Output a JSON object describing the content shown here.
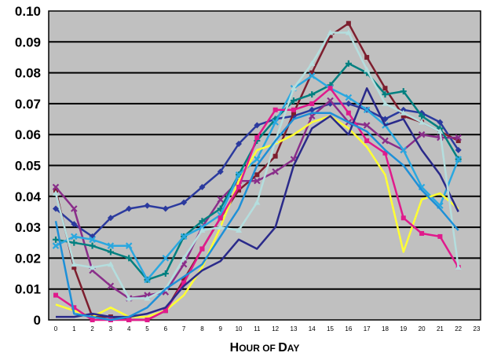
{
  "chart_data": {
    "type": "line",
    "title": "",
    "xlabel_parts": [
      {
        "text": "H",
        "big": true
      },
      {
        "text": "OUR OF ",
        "big": false
      },
      {
        "text": "D",
        "big": true
      },
      {
        "text": "AY",
        "big": false
      }
    ],
    "ylabel": "",
    "xlim": [
      0,
      23
    ],
    "ylim": [
      0,
      0.1
    ],
    "x_ticks": [
      0,
      1,
      2,
      3,
      4,
      5,
      6,
      7,
      8,
      9,
      10,
      11,
      12,
      13,
      14,
      15,
      16,
      17,
      18,
      19,
      20,
      21,
      22,
      23
    ],
    "y_ticks": [
      {
        "value": 0,
        "label": "0"
      },
      {
        "value": 0.01,
        "label": "0.01"
      },
      {
        "value": 0.02,
        "label": "0.02"
      },
      {
        "value": 0.03,
        "label": "0.03"
      },
      {
        "value": 0.04,
        "label": "0.04"
      },
      {
        "value": 0.05,
        "label": "0.05"
      },
      {
        "value": 0.06,
        "label": "0.06"
      },
      {
        "value": 0.07,
        "label": "0.07"
      },
      {
        "value": 0.08,
        "label": "0.08"
      },
      {
        "value": 0.09,
        "label": "0.09"
      },
      {
        "value": 0.1,
        "label": "0.10"
      }
    ],
    "grid": "horizontal",
    "plot_background": "#c0c0c0",
    "series": [
      {
        "color": "#2b3a9e",
        "marker": "diamond",
        "x": [
          0,
          1,
          2,
          3,
          4,
          5,
          6,
          7,
          8,
          9,
          10,
          11,
          12,
          13,
          14,
          15,
          16,
          17,
          18,
          19,
          20,
          21,
          22
        ],
        "values": [
          0.036,
          0.031,
          0.027,
          0.033,
          0.036,
          0.037,
          0.036,
          0.038,
          0.043,
          0.048,
          0.057,
          0.063,
          0.065,
          0.066,
          0.068,
          0.07,
          0.07,
          0.068,
          0.065,
          0.068,
          0.067,
          0.064,
          0.055
        ]
      },
      {
        "color": "#7d1e2e",
        "marker": "square",
        "x": [
          0,
          1,
          2,
          3,
          4,
          5,
          6,
          7,
          8,
          9,
          10,
          11,
          12,
          13,
          14,
          15,
          16,
          17,
          18,
          19,
          20,
          21,
          22
        ],
        "values": [
          0.042,
          0.017,
          0.001,
          0.001,
          0.0,
          0.0,
          0.003,
          0.013,
          0.023,
          0.033,
          0.042,
          0.047,
          0.053,
          0.067,
          0.08,
          0.092,
          0.096,
          0.085,
          0.075,
          0.066,
          0.064,
          0.061,
          0.058
        ]
      },
      {
        "color": "#8a2e8a",
        "marker": "x",
        "x": [
          0,
          1,
          2,
          3,
          4,
          5,
          6,
          7,
          8,
          9,
          10,
          11,
          12,
          13,
          14,
          15,
          16,
          17,
          18,
          19,
          20,
          21,
          22
        ],
        "values": [
          0.043,
          0.036,
          0.016,
          0.011,
          0.007,
          0.008,
          0.009,
          0.018,
          0.03,
          0.039,
          0.045,
          0.045,
          0.048,
          0.052,
          0.066,
          0.071,
          0.064,
          0.063,
          0.058,
          0.055,
          0.06,
          0.059,
          0.059
        ]
      },
      {
        "color": "#008080",
        "marker": "plus",
        "x": [
          0,
          1,
          2,
          3,
          4,
          5,
          6,
          7,
          8,
          9,
          10,
          11,
          12,
          13,
          14,
          15,
          16,
          17,
          18,
          19,
          20,
          21,
          22
        ],
        "values": [
          0.026,
          0.025,
          0.024,
          0.022,
          0.02,
          0.013,
          0.015,
          0.027,
          0.032,
          0.036,
          0.047,
          0.058,
          0.065,
          0.071,
          0.073,
          0.076,
          0.083,
          0.08,
          0.073,
          0.074,
          0.066,
          0.062,
          0.052
        ]
      },
      {
        "color": "#2aa8e0",
        "marker": "x",
        "x": [
          0,
          1,
          2,
          3,
          4,
          5,
          6,
          7,
          8,
          9,
          10,
          11,
          12,
          13,
          14,
          15,
          16,
          17,
          18,
          19,
          20,
          21,
          22
        ],
        "values": [
          0.024,
          0.027,
          0.026,
          0.024,
          0.024,
          0.013,
          0.02,
          0.027,
          0.03,
          0.034,
          0.047,
          0.052,
          0.064,
          0.075,
          0.079,
          0.075,
          0.072,
          0.068,
          0.063,
          0.055,
          0.043,
          0.037,
          0.052
        ]
      },
      {
        "color": "#ffff33",
        "marker": "none",
        "x": [
          0,
          1,
          2,
          3,
          4,
          5,
          6,
          7,
          8,
          9,
          10,
          11,
          12,
          13,
          14,
          15,
          16,
          17,
          18,
          19,
          20,
          21,
          22
        ],
        "values": [
          0.005,
          0.003,
          0.001,
          0.004,
          0.001,
          0.001,
          0.003,
          0.008,
          0.017,
          0.03,
          0.045,
          0.055,
          0.057,
          0.06,
          0.064,
          0.066,
          0.062,
          0.056,
          0.047,
          0.022,
          0.039,
          0.041,
          0.036
        ]
      },
      {
        "color": "#e01a8c",
        "marker": "square",
        "x": [
          0,
          1,
          2,
          3,
          4,
          5,
          6,
          7,
          8,
          9,
          10,
          11,
          12,
          13,
          14,
          15,
          16,
          17,
          18,
          19,
          20,
          21,
          22
        ],
        "values": [
          0.008,
          0.004,
          0.0,
          0.0,
          0.0,
          0.0,
          0.003,
          0.012,
          0.023,
          0.033,
          0.043,
          0.059,
          0.068,
          0.068,
          0.07,
          0.075,
          0.067,
          0.058,
          0.054,
          0.033,
          0.028,
          0.027,
          0.017
        ]
      },
      {
        "color": "#2a2a8a",
        "marker": "none",
        "x": [
          0,
          1,
          2,
          3,
          4,
          5,
          6,
          7,
          8,
          9,
          10,
          11,
          12,
          13,
          14,
          15,
          16,
          17,
          18,
          19,
          20,
          21,
          22
        ],
        "values": [
          0.001,
          0.001,
          0.002,
          0.001,
          0.001,
          0.002,
          0.004,
          0.011,
          0.016,
          0.019,
          0.026,
          0.023,
          0.03,
          0.05,
          0.062,
          0.066,
          0.06,
          0.075,
          0.063,
          0.065,
          0.055,
          0.047,
          0.035
        ]
      },
      {
        "color": "#b4dede",
        "marker": "triangle",
        "x": [
          0,
          1,
          2,
          3,
          4,
          5,
          6,
          7,
          8,
          9,
          10,
          11,
          12,
          13,
          14,
          15,
          16,
          17,
          18,
          19,
          20,
          21,
          22
        ],
        "values": [
          0.041,
          0.018,
          0.017,
          0.018,
          0.007,
          0.007,
          0.01,
          0.02,
          0.029,
          0.03,
          0.029,
          0.038,
          0.058,
          0.075,
          0.083,
          0.093,
          0.093,
          0.081,
          0.07,
          0.067,
          0.064,
          0.061,
          0.017
        ]
      },
      {
        "color": "#1e90d8",
        "marker": "none",
        "x": [
          0,
          1,
          2,
          3,
          4,
          5,
          6,
          7,
          8,
          9,
          10,
          11,
          12,
          13,
          14,
          15,
          16,
          17,
          18,
          19,
          20,
          21,
          22
        ],
        "values": [
          0.032,
          0.002,
          0.001,
          0.0,
          0.001,
          0.004,
          0.01,
          0.014,
          0.018,
          0.027,
          0.036,
          0.05,
          0.058,
          0.065,
          0.067,
          0.067,
          0.064,
          0.061,
          0.055,
          0.05,
          0.042,
          0.036,
          0.029
        ]
      }
    ]
  }
}
